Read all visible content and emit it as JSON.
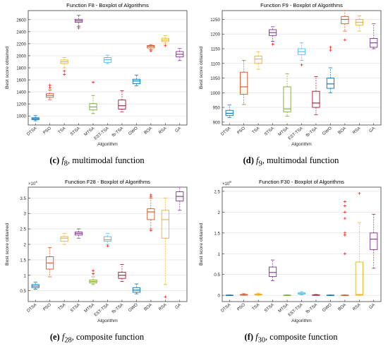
{
  "chart_data": [
    {
      "type": "boxplot",
      "title": "Function F8 - Boxplot of Algorithms",
      "xlabel": "Algorithm",
      "ylabel": "Best score obtained",
      "ylim": [
        850,
        2750
      ],
      "yticks": [
        1000,
        1200,
        1400,
        1600,
        1800,
        2000,
        2200,
        2400,
        2600
      ],
      "ytick_labels": [
        "1000",
        "1200",
        "1400",
        "1600",
        "1800",
        "2000",
        "2200",
        "2400",
        "2600"
      ],
      "exponent": "",
      "categories": [
        "DTSA",
        "PSO",
        "TSA",
        "STSA",
        "MTSA",
        "EST-TSA",
        "fb-TSA",
        "GWO",
        "BOA",
        "RSA",
        "GA"
      ],
      "boxes": [
        {
          "wlo": 920,
          "q1": 940,
          "med": 955,
          "q3": 970,
          "whi": 1005,
          "outliers": []
        },
        {
          "wlo": 1270,
          "q1": 1310,
          "med": 1340,
          "q3": 1370,
          "whi": 1430,
          "outliers": [
            1470,
            1510
          ]
        },
        {
          "wlo": 1800,
          "q1": 1870,
          "med": 1900,
          "q3": 1930,
          "whi": 1970,
          "outliers": [
            1690,
            1745
          ]
        },
        {
          "wlo": 2490,
          "q1": 2555,
          "med": 2580,
          "q3": 2605,
          "whi": 2670,
          "outliers": [
            2460
          ]
        },
        {
          "wlo": 1040,
          "q1": 1100,
          "med": 1150,
          "q3": 1205,
          "whi": 1340,
          "outliers": [
            1560
          ]
        },
        {
          "wlo": 1870,
          "q1": 1890,
          "med": 1935,
          "q3": 1970,
          "whi": 2010,
          "outliers": []
        },
        {
          "wlo": 1070,
          "q1": 1115,
          "med": 1170,
          "q3": 1265,
          "whi": 1420,
          "outliers": []
        },
        {
          "wlo": 1500,
          "q1": 1535,
          "med": 1580,
          "q3": 1610,
          "whi": 1680,
          "outliers": []
        },
        {
          "wlo": 2100,
          "q1": 2130,
          "med": 2155,
          "q3": 2170,
          "whi": 2185,
          "outliers": [
            2080
          ]
        },
        {
          "wlo": 2200,
          "q1": 2235,
          "med": 2260,
          "q3": 2290,
          "whi": 2335,
          "outliers": [
            2170
          ]
        },
        {
          "wlo": 1920,
          "q1": 1980,
          "med": 2025,
          "q3": 2070,
          "whi": 2120,
          "outliers": []
        }
      ]
    },
    {
      "type": "boxplot",
      "title": "Function F9 - Boxplot of Algorithms",
      "xlabel": "Algorithm",
      "ylabel": "Best score obtained",
      "ylim": [
        890,
        1280
      ],
      "yticks": [
        900,
        950,
        1000,
        1050,
        1100,
        1150,
        1200,
        1250
      ],
      "ytick_labels": [
        "900",
        "950",
        "1000",
        "1050",
        "1100",
        "1150",
        "1200",
        "1250"
      ],
      "exponent": "",
      "categories": [
        "DTSA",
        "PSO",
        "TSA",
        "STSA",
        "MTSA",
        "EST-TSA",
        "fb-TSA",
        "GWO",
        "BOA",
        "RSA",
        "GA"
      ],
      "boxes": [
        {
          "wlo": 915,
          "q1": 922,
          "med": 930,
          "q3": 940,
          "whi": 958,
          "outliers": []
        },
        {
          "wlo": 960,
          "q1": 995,
          "med": 1020,
          "q3": 1070,
          "whi": 1110,
          "outliers": []
        },
        {
          "wlo": 1080,
          "q1": 1100,
          "med": 1115,
          "q3": 1125,
          "whi": 1140,
          "outliers": []
        },
        {
          "wlo": 1175,
          "q1": 1195,
          "med": 1205,
          "q3": 1215,
          "whi": 1225,
          "outliers": [
            1165
          ]
        },
        {
          "wlo": 920,
          "q1": 935,
          "med": 945,
          "q3": 1020,
          "whi": 1065,
          "outliers": []
        },
        {
          "wlo": 1110,
          "q1": 1130,
          "med": 1140,
          "q3": 1150,
          "whi": 1170,
          "outliers": [
            1095
          ]
        },
        {
          "wlo": 925,
          "q1": 950,
          "med": 965,
          "q3": 1005,
          "whi": 1055,
          "outliers": []
        },
        {
          "wlo": 1000,
          "q1": 1015,
          "med": 1030,
          "q3": 1050,
          "whi": 1085,
          "outliers": [
            1145,
            1155
          ]
        },
        {
          "wlo": 1210,
          "q1": 1235,
          "med": 1250,
          "q3": 1260,
          "whi": 1280,
          "outliers": [
            1180
          ]
        },
        {
          "wlo": 1210,
          "q1": 1230,
          "med": 1240,
          "q3": 1250,
          "whi": 1262,
          "outliers": []
        },
        {
          "wlo": 1150,
          "q1": 1155,
          "med": 1170,
          "q3": 1185,
          "whi": 1235,
          "outliers": []
        }
      ]
    },
    {
      "type": "boxplot",
      "title": "Function F28 - Boxplot of Algorithms",
      "xlabel": "Algorithm",
      "ylabel": "Best score obtained",
      "ylim": [
        0.15,
        3.85
      ],
      "yticks": [
        0.5,
        1,
        1.5,
        2,
        2.5,
        3,
        3.5
      ],
      "ytick_labels": [
        "0.5",
        "1",
        "1.5",
        "2",
        "2.5",
        "3",
        "3.5"
      ],
      "exponent": "×10",
      "exponent_power": "4",
      "categories": [
        "DTSA",
        "PSO",
        "TSA",
        "STSA",
        "MTSA",
        "EST-TSA",
        "fb-TSA",
        "GWO",
        "BOA",
        "RSA",
        "GA"
      ],
      "boxes": [
        {
          "wlo": 0.55,
          "q1": 0.6,
          "med": 0.65,
          "q3": 0.7,
          "whi": 0.78,
          "outliers": []
        },
        {
          "wlo": 0.95,
          "q1": 1.2,
          "med": 1.4,
          "q3": 1.6,
          "whi": 1.9,
          "outliers": []
        },
        {
          "wlo": 2.0,
          "q1": 2.1,
          "med": 2.2,
          "q3": 2.25,
          "whi": 2.35,
          "outliers": []
        },
        {
          "wlo": 2.2,
          "q1": 2.3,
          "med": 2.35,
          "q3": 2.4,
          "whi": 2.5,
          "outliers": []
        },
        {
          "wlo": 0.7,
          "q1": 0.75,
          "med": 0.8,
          "q3": 0.85,
          "whi": 0.95,
          "outliers": [
            1.05,
            1.15
          ]
        },
        {
          "wlo": 2.0,
          "q1": 2.1,
          "med": 2.15,
          "q3": 2.25,
          "whi": 2.35,
          "outliers": [
            1.95
          ]
        },
        {
          "wlo": 0.8,
          "q1": 0.9,
          "med": 1.0,
          "q3": 1.1,
          "whi": 1.35,
          "outliers": []
        },
        {
          "wlo": 0.4,
          "q1": 0.45,
          "med": 0.52,
          "q3": 0.6,
          "whi": 0.72,
          "outliers": []
        },
        {
          "wlo": 2.5,
          "q1": 2.8,
          "med": 3.05,
          "q3": 3.15,
          "whi": 3.5,
          "outliers": [
            3.55,
            3.6,
            2.45
          ]
        },
        {
          "wlo": 0.7,
          "q1": 2.2,
          "med": 2.8,
          "q3": 3.1,
          "whi": 3.5,
          "outliers": [
            0.3
          ]
        },
        {
          "wlo": 3.1,
          "q1": 3.4,
          "med": 3.55,
          "q3": 3.7,
          "whi": 3.85,
          "outliers": []
        }
      ]
    },
    {
      "type": "boxplot",
      "title": "Function F30 - Boxplot of Algorithms",
      "xlabel": "Algorithm",
      "ylabel": "Best score obtained",
      "ylim": [
        -0.15,
        2.6
      ],
      "yticks": [
        0,
        0.5,
        1,
        1.5,
        2,
        2.5
      ],
      "ytick_labels": [
        "0",
        "0.5",
        "1",
        "1.5",
        "2",
        "2.5"
      ],
      "exponent": "×10",
      "exponent_power": "8",
      "categories": [
        "DTSA",
        "PSO",
        "TSA",
        "STSA",
        "MTSA",
        "EST-TSA",
        "fb-TSA",
        "GWO",
        "BOA",
        "RSA",
        "GA"
      ],
      "boxes": [
        {
          "wlo": 0,
          "q1": 0,
          "med": 0,
          "q3": 0.005,
          "whi": 0.01,
          "outliers": []
        },
        {
          "wlo": 0,
          "q1": 0.005,
          "med": 0.01,
          "q3": 0.02,
          "whi": 0.04,
          "outliers": []
        },
        {
          "wlo": 0,
          "q1": 0.01,
          "med": 0.02,
          "q3": 0.03,
          "whi": 0.05,
          "outliers": []
        },
        {
          "wlo": 0.35,
          "q1": 0.45,
          "med": 0.55,
          "q3": 0.68,
          "whi": 0.85,
          "outliers": []
        },
        {
          "wlo": 0,
          "q1": 0,
          "med": 0,
          "q3": 0.005,
          "whi": 0.01,
          "outliers": []
        },
        {
          "wlo": 0.01,
          "q1": 0.03,
          "med": 0.04,
          "q3": 0.06,
          "whi": 0.09,
          "outliers": []
        },
        {
          "wlo": 0,
          "q1": 0,
          "med": 0.005,
          "q3": 0.01,
          "whi": 0.02,
          "outliers": []
        },
        {
          "wlo": 0,
          "q1": 0,
          "med": 0,
          "q3": 0.005,
          "whi": 0.01,
          "outliers": []
        },
        {
          "wlo": 0,
          "q1": 0,
          "med": 0,
          "q3": 0.005,
          "whi": 0.01,
          "outliers": [
            1.0,
            1.45,
            1.5,
            1.85,
            2.0,
            2.15,
            2.25
          ]
        },
        {
          "wlo": 0,
          "q1": 0,
          "med": 0.02,
          "q3": 0.8,
          "whi": 1.75,
          "outliers": [
            2.45
          ]
        },
        {
          "wlo": 0.65,
          "q1": 1.1,
          "med": 1.35,
          "q3": 1.5,
          "whi": 1.95,
          "outliers": []
        }
      ]
    }
  ],
  "colors": [
    "#0072BD",
    "#D95319",
    "#EDB120",
    "#7E2F8E",
    "#77AC30",
    "#4DBEEE",
    "#A2142F",
    "#0072BD",
    "#D95319",
    "#EDB120",
    "#7E2F8E"
  ],
  "outlier_color": "#FF0000",
  "captions": [
    {
      "letter": "(c)",
      "func": "f",
      "sub": "8",
      "desc": ", multimodal function"
    },
    {
      "letter": "(d)",
      "func": "f",
      "sub": "9",
      "desc": ", multimodal function"
    },
    {
      "letter": "(e)",
      "func": "f",
      "sub": "28",
      "desc": ", composite function"
    },
    {
      "letter": "(f)",
      "func": "f",
      "sub": "30",
      "desc": ", composite function"
    }
  ]
}
